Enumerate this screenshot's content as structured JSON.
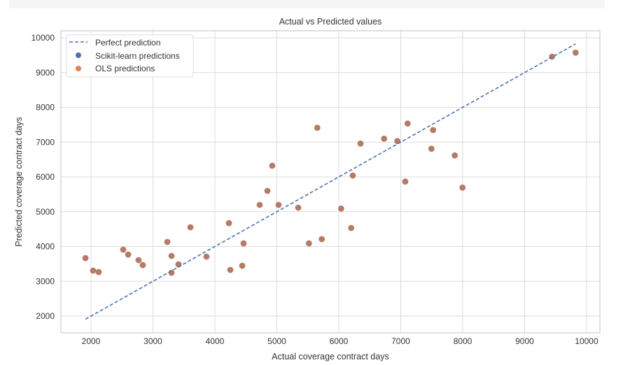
{
  "chart_data": {
    "type": "scatter",
    "title": "Actual vs Predicted values",
    "xlabel": "Actual coverage contract days",
    "ylabel": "Predicted coverage contract days",
    "xlim": [
      1514,
      10215
    ],
    "ylim": [
      1518,
      10201
    ],
    "xticks": [
      2000,
      3000,
      4000,
      5000,
      6000,
      7000,
      8000,
      9000,
      10000
    ],
    "yticks": [
      2000,
      3000,
      4000,
      5000,
      6000,
      7000,
      8000,
      9000,
      10000
    ],
    "grid": true,
    "legend_position": "top-left",
    "legend": [
      "Perfect prediction",
      "Scikit-learn predictions",
      "OLS predictions"
    ],
    "colors": {
      "line": "#4c72b0",
      "sklearn": "#4c72b0",
      "ols": "#dd8452",
      "overlap": "#b87a62"
    },
    "perfect_line": {
      "x": [
        1910,
        9823
      ],
      "y": [
        1910,
        9823
      ]
    },
    "series": [
      {
        "name": "Scikit-learn predictions",
        "x": [
          1910,
          2034,
          2124,
          2520,
          2600,
          2768,
          2836,
          3232,
          3300,
          3300,
          3412,
          3605,
          3864,
          4226,
          4249,
          4441,
          4463,
          4723,
          4848,
          4926,
          5028,
          5345,
          5518,
          5653,
          5725,
          6038,
          6200,
          6226,
          6350,
          6731,
          6945,
          7111,
          7073,
          7522,
          7495,
          7872,
          7997,
          9443,
          9823
        ],
        "y": [
          3668,
          3307,
          3266,
          3910,
          3768,
          3608,
          3467,
          4131,
          3729,
          3246,
          3487,
          4553,
          3709,
          4673,
          3327,
          3447,
          4090,
          5196,
          5598,
          6322,
          5196,
          5116,
          4090,
          7413,
          4211,
          5089,
          4533,
          6040,
          6959,
          7099,
          7032,
          7534,
          5865,
          7347,
          6811,
          6617,
          5693,
          9457,
          9572
        ]
      },
      {
        "name": "OLS predictions",
        "x": [
          1910,
          2034,
          2124,
          2520,
          2600,
          2768,
          2836,
          3232,
          3300,
          3300,
          3412,
          3605,
          3864,
          4226,
          4249,
          4441,
          4463,
          4723,
          4848,
          4926,
          5028,
          5345,
          5518,
          5653,
          5725,
          6038,
          6200,
          6226,
          6350,
          6731,
          6945,
          7111,
          7073,
          7522,
          7495,
          7872,
          7997,
          9443,
          9823
        ],
        "y": [
          3668,
          3307,
          3266,
          3910,
          3768,
          3608,
          3467,
          4131,
          3729,
          3246,
          3487,
          4553,
          3709,
          4673,
          3327,
          3447,
          4090,
          5196,
          5598,
          6322,
          5196,
          5116,
          4090,
          7413,
          4211,
          5089,
          4533,
          6040,
          6959,
          7099,
          7032,
          7534,
          5865,
          7347,
          6811,
          6617,
          5693,
          9457,
          9572
        ]
      }
    ]
  }
}
